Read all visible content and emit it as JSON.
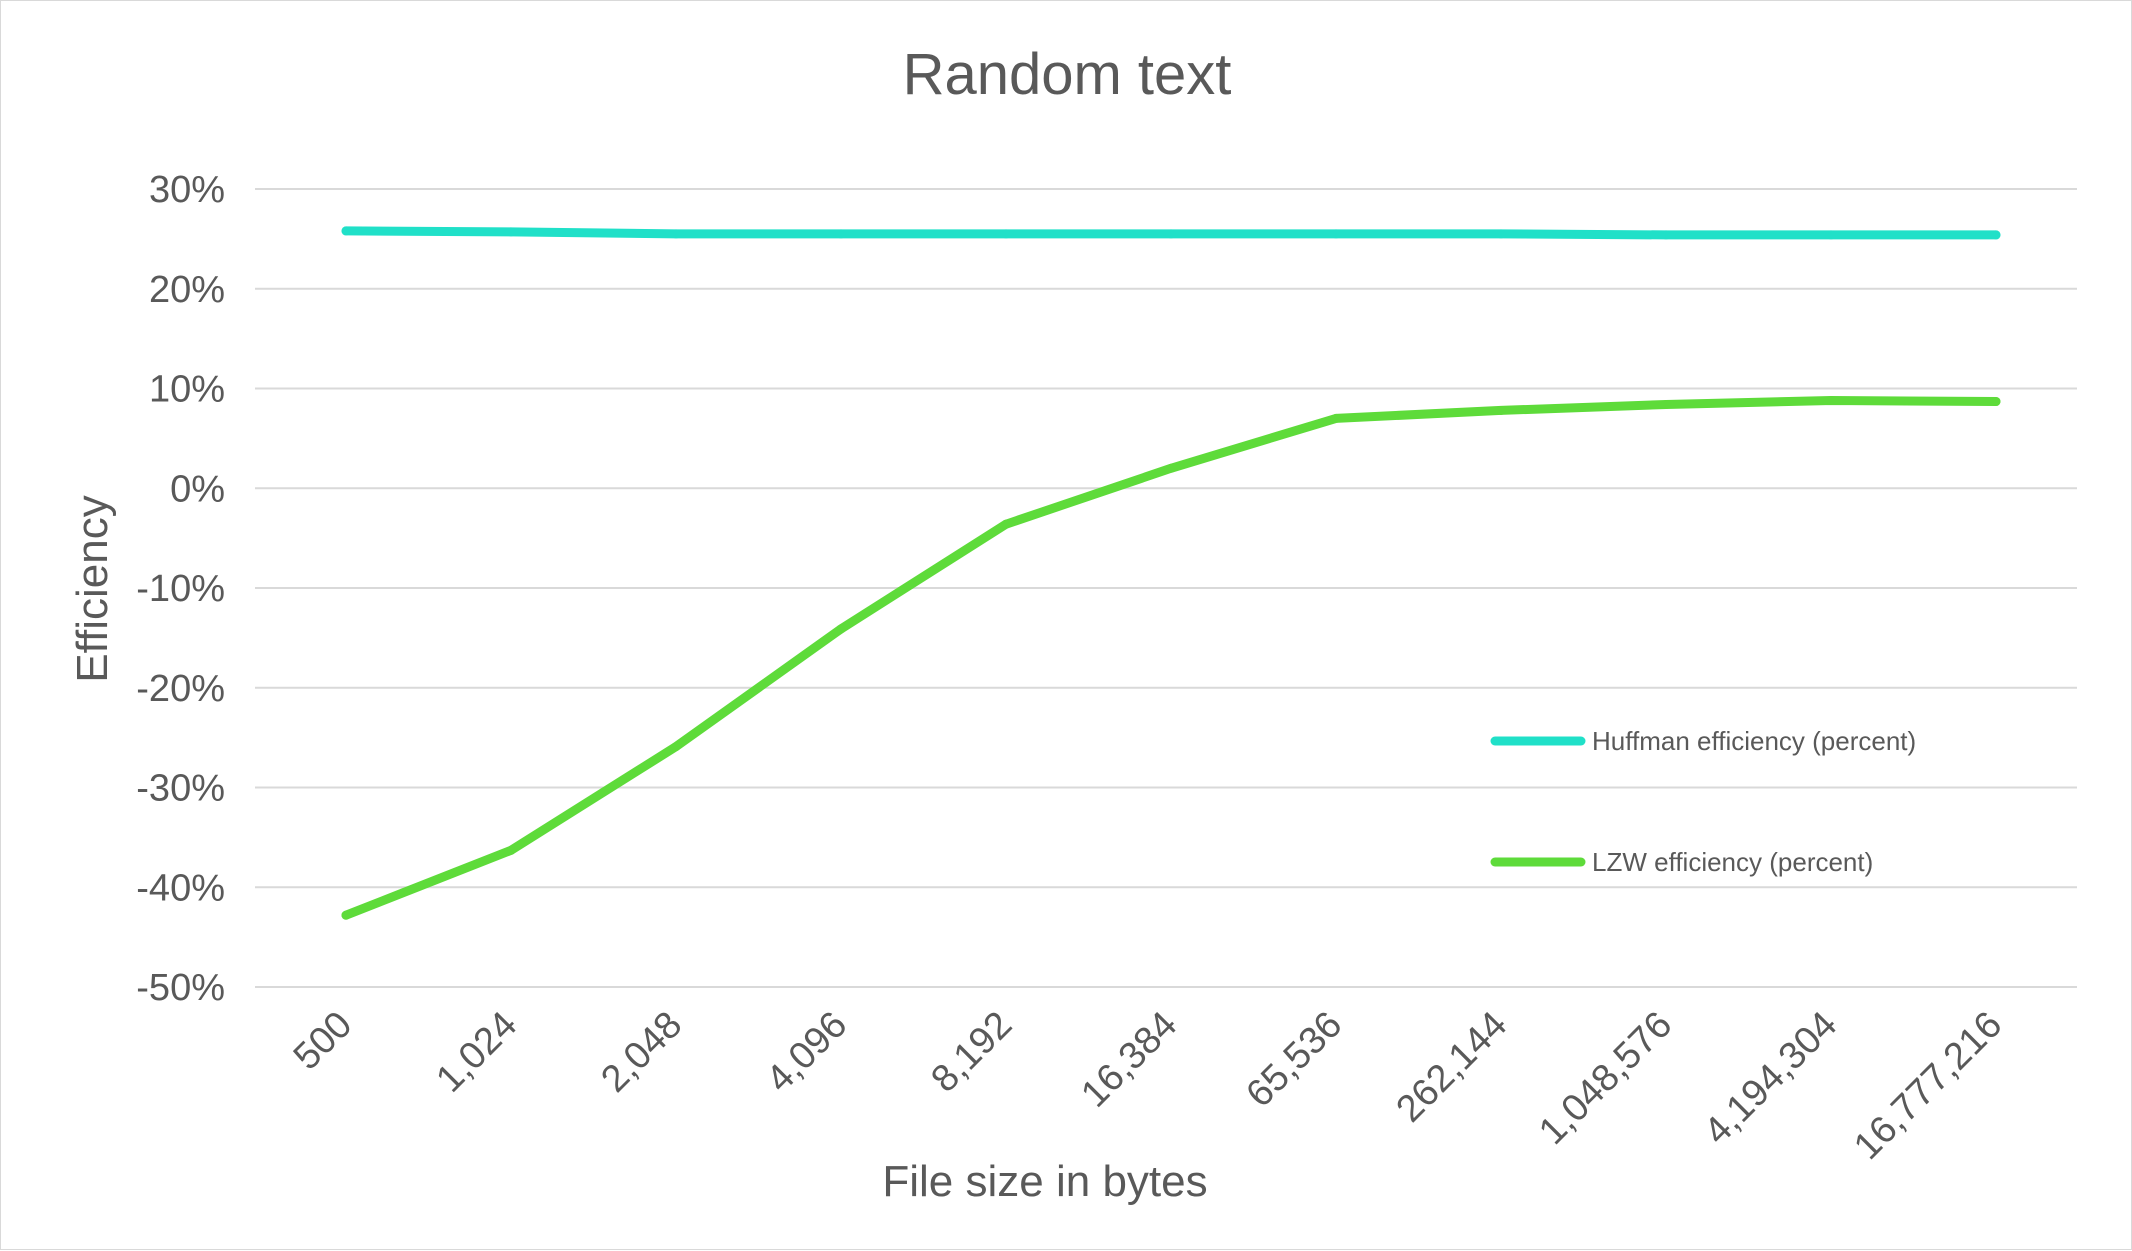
{
  "chart_data": {
    "type": "line",
    "title": "Random text",
    "xlabel": "File size in bytes",
    "ylabel": "Efficiency",
    "categories": [
      "500",
      "1,024",
      "2,048",
      "4,096",
      "8,192",
      "16,384",
      "65,536",
      "262,144",
      "1,048,576",
      "4,194,304",
      "16,777,216"
    ],
    "ylim": [
      -50,
      30
    ],
    "yticks": [
      30,
      20,
      10,
      0,
      -10,
      -20,
      -30,
      -40,
      -50
    ],
    "ytick_labels": [
      "30%",
      "20%",
      "10%",
      "0%",
      "-10%",
      "-20%",
      "-30%",
      "-40%",
      "-50%"
    ],
    "grid": true,
    "legend_position": "right, lower-middle",
    "series": [
      {
        "name": "Huffman efficiency (percent)",
        "color": "#20E0C8",
        "values": [
          25.8,
          25.7,
          25.5,
          25.5,
          25.5,
          25.5,
          25.5,
          25.5,
          25.4,
          25.4,
          25.4
        ]
      },
      {
        "name": "LZW efficiency (percent)",
        "color": "#5EDB3A",
        "values": [
          -42.8,
          -36.3,
          -25.9,
          -14.1,
          -3.6,
          2.0,
          7.0,
          7.8,
          8.4,
          8.8,
          8.7
        ]
      }
    ]
  }
}
